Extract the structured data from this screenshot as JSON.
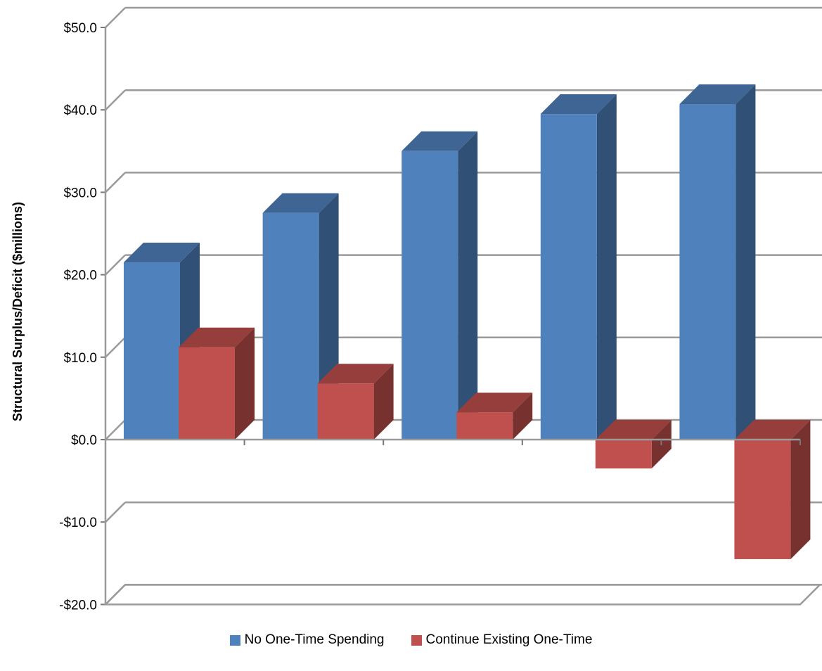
{
  "chart_data": {
    "type": "bar",
    "title": "",
    "xlabel": "",
    "ylabel": "Structural Surplus/Deficit  ($millions)",
    "categories": [
      "",
      "",
      "",
      "",
      ""
    ],
    "ylim": [
      -20,
      50
    ],
    "yticks": [
      {
        "value": 50,
        "label": "$50.0"
      },
      {
        "value": 40,
        "label": "$40.0"
      },
      {
        "value": 30,
        "label": "$30.0"
      },
      {
        "value": 20,
        "label": "$20.0"
      },
      {
        "value": 10,
        "label": "$10.0"
      },
      {
        "value": 0,
        "label": "$0.0"
      },
      {
        "value": -10,
        "label": "-$10.0"
      },
      {
        "value": -20,
        "label": "-$20.0"
      }
    ],
    "grid": true,
    "style": "3d-clustered-column",
    "legend_position": "bottom",
    "series": [
      {
        "name": "No One-Time Spending",
        "color": "#4F81BD",
        "values": [
          21.5,
          27.5,
          35.0,
          39.5,
          40.7
        ]
      },
      {
        "name": "Continue Existing One-Time",
        "color": "#C0504D",
        "values": [
          11.2,
          6.8,
          3.3,
          -3.5,
          -14.5
        ]
      }
    ]
  }
}
